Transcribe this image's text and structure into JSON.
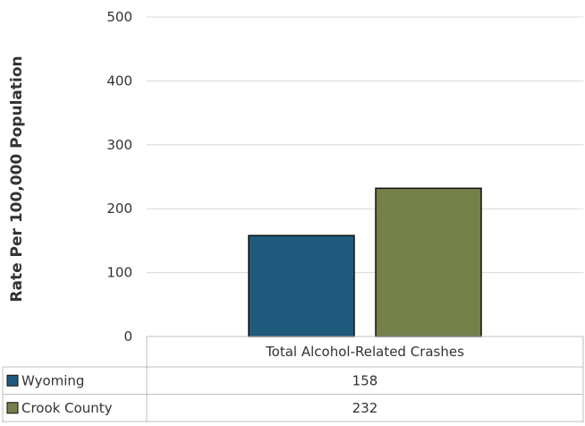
{
  "chart_data": {
    "type": "bar",
    "title": "",
    "xlabel": "",
    "ylabel": "Rate Per 100,000 Population",
    "ylim": [
      0,
      500
    ],
    "yticks": [
      0,
      100,
      200,
      300,
      400,
      500
    ],
    "grid": true,
    "categories": [
      "Total Alcohol-Related Crashes"
    ],
    "series": [
      {
        "name": "Wyoming",
        "values": [
          158
        ],
        "color": "#1f5a7d"
      },
      {
        "name": "Crook County",
        "values": [
          232
        ],
        "color": "#757f4a"
      }
    ],
    "data_table": true,
    "legend_placement": "data-table-rows"
  }
}
